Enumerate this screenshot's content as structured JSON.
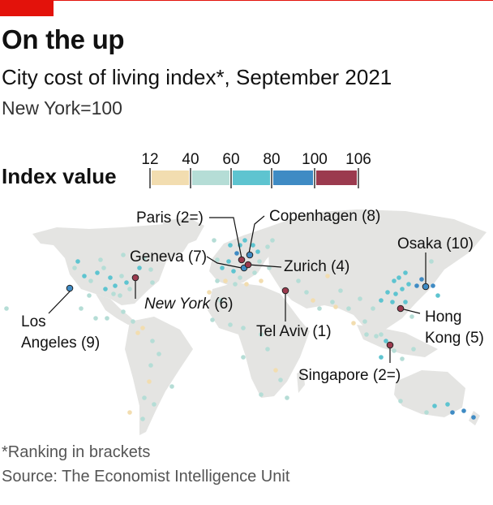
{
  "header": {
    "title": "On the up",
    "subtitle": "City cost of living index*, September 2021",
    "unit": "New York=100"
  },
  "legend": {
    "title": "Index value",
    "ticks": [
      "12",
      "40",
      "60",
      "80",
      "100",
      "106"
    ],
    "bins": [
      {
        "from": 12,
        "to": 40,
        "color": "#f2ddb0"
      },
      {
        "from": 40,
        "to": 60,
        "color": "#b5ddd6"
      },
      {
        "from": 60,
        "to": 80,
        "color": "#5ec4d0"
      },
      {
        "from": 80,
        "to": 100,
        "color": "#3f8bc4"
      },
      {
        "from": 100,
        "to": 106,
        "color": "#9b3a4e"
      }
    ]
  },
  "cities": [
    {
      "label": "Paris (2=)",
      "rank": "2=",
      "index": 100
    },
    {
      "label": "Copenhagen (8)",
      "rank": "8",
      "index": 90
    },
    {
      "label": "Geneva (7)",
      "rank": "7",
      "index": 95
    },
    {
      "label": "Zurich (4)",
      "rank": "4",
      "index": 100
    },
    {
      "label": "Osaka (10)",
      "rank": "10",
      "index": 88
    },
    {
      "label": "New York (6)",
      "label_main": "New York",
      "label_rank": "(6)",
      "rank": "6",
      "index": 100
    },
    {
      "label": "Los Angeles (9)",
      "label_line1": "Los",
      "label_line2": "Angeles (9)",
      "rank": "9",
      "index": 90
    },
    {
      "label": "Tel Aviv (1)",
      "rank": "1",
      "index": 106
    },
    {
      "label": "Hong Kong (5)",
      "label_line1": "Hong",
      "label_line2": "Kong (5)",
      "rank": "5",
      "index": 100
    },
    {
      "label": "Singapore (2=)",
      "rank": "2=",
      "index": 100
    }
  ],
  "footer": {
    "note": "*Ranking in brackets",
    "source": "Source: The Economist Intelligence Unit"
  },
  "colors": {
    "accent": "#e3120b",
    "land": "#e4e4e2"
  }
}
